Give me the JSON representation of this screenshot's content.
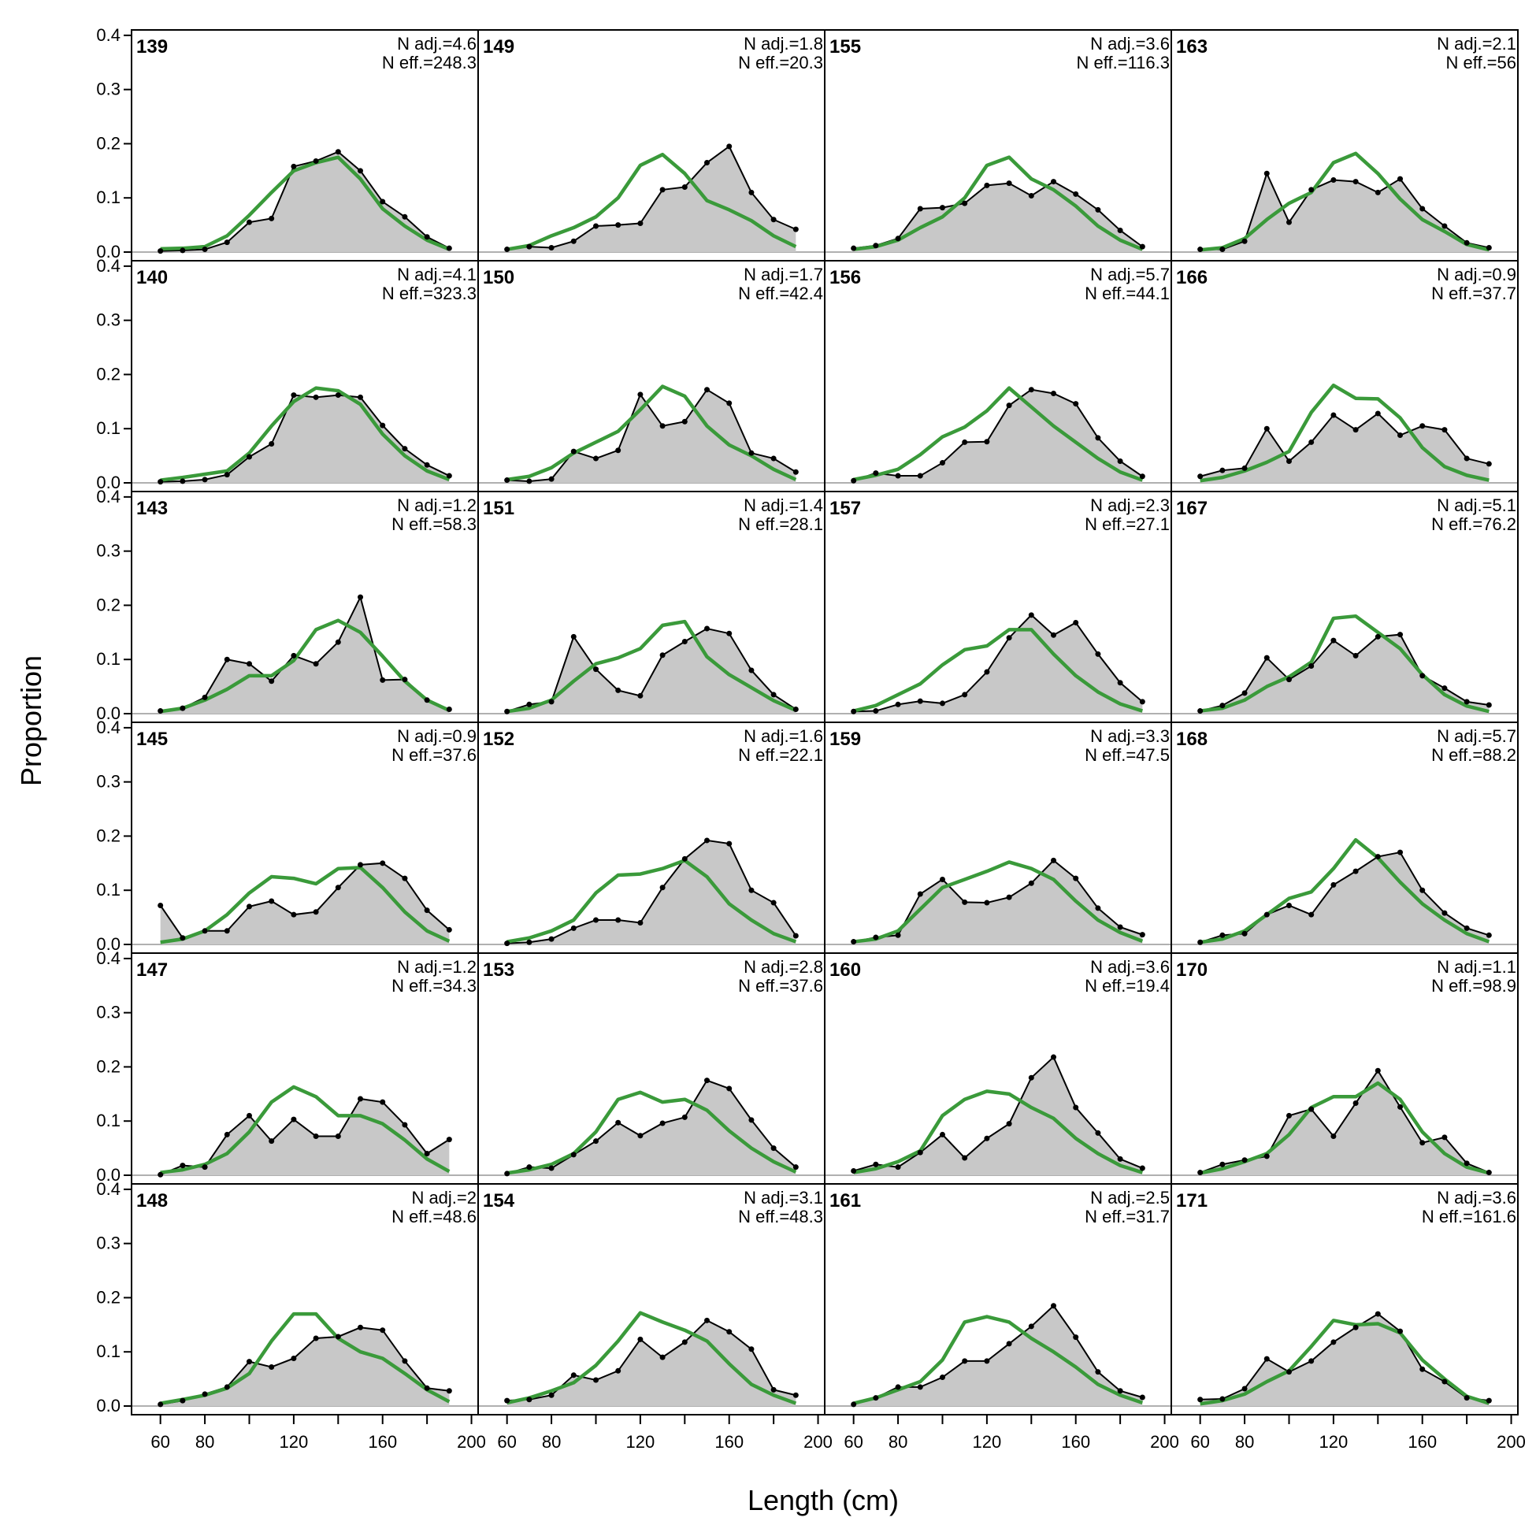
{
  "chart_data": {
    "type": "area",
    "xlabel": "Length (cm)",
    "ylabel": "Proportion",
    "xlim": [
      47,
      203
    ],
    "ylim": [
      0,
      0.41
    ],
    "x_ticks": [
      60,
      80,
      120,
      160,
      200
    ],
    "y_ticks": [
      "0.0",
      "0.1",
      "0.2",
      "0.3",
      "0.4"
    ],
    "grid": false,
    "colors": {
      "observed_fill": "#c8c8c8",
      "observed_line": "#000000",
      "expected_line": "#3a9a3a",
      "zero_line": "#b0b0b0"
    },
    "x": [
      60,
      70,
      80,
      90,
      100,
      110,
      120,
      130,
      140,
      150,
      160,
      170,
      180,
      190
    ],
    "panels": [
      {
        "title": "139",
        "n_adj": "N adj.=4.6",
        "n_eff": "N eff.=248.3",
        "observed": [
          0.002,
          0.003,
          0.005,
          0.018,
          0.055,
          0.062,
          0.158,
          0.168,
          0.185,
          0.15,
          0.093,
          0.065,
          0.028,
          0.007
        ],
        "expected": [
          0.006,
          0.007,
          0.01,
          0.03,
          0.068,
          0.11,
          0.15,
          0.165,
          0.175,
          0.135,
          0.08,
          0.048,
          0.022,
          0.005
        ]
      },
      {
        "title": "149",
        "n_adj": "N adj.=1.8",
        "n_eff": "N eff.=20.3",
        "observed": [
          0.005,
          0.01,
          0.008,
          0.02,
          0.048,
          0.05,
          0.053,
          0.115,
          0.12,
          0.165,
          0.195,
          0.11,
          0.06,
          0.042
        ],
        "expected": [
          0.005,
          0.012,
          0.03,
          0.045,
          0.065,
          0.1,
          0.16,
          0.18,
          0.145,
          0.095,
          0.078,
          0.058,
          0.03,
          0.01
        ]
      },
      {
        "title": "155",
        "n_adj": "N adj.=3.6",
        "n_eff": "N eff.=116.3",
        "observed": [
          0.007,
          0.012,
          0.025,
          0.08,
          0.082,
          0.09,
          0.123,
          0.127,
          0.104,
          0.13,
          0.107,
          0.078,
          0.04,
          0.01
        ],
        "expected": [
          0.005,
          0.01,
          0.022,
          0.045,
          0.065,
          0.1,
          0.16,
          0.175,
          0.135,
          0.115,
          0.085,
          0.048,
          0.022,
          0.005
        ]
      },
      {
        "title": "163",
        "n_adj": "N adj.=2.1",
        "n_eff": "N eff.=56",
        "observed": [
          0.005,
          0.005,
          0.02,
          0.145,
          0.055,
          0.115,
          0.133,
          0.13,
          0.11,
          0.135,
          0.08,
          0.048,
          0.017,
          0.008
        ],
        "expected": [
          0.004,
          0.008,
          0.025,
          0.06,
          0.09,
          0.11,
          0.165,
          0.182,
          0.145,
          0.098,
          0.06,
          0.038,
          0.014,
          0.004
        ]
      },
      {
        "title": "140",
        "n_adj": "N adj.=4.1",
        "n_eff": "N eff.=323.3",
        "observed": [
          0.002,
          0.003,
          0.006,
          0.015,
          0.048,
          0.072,
          0.162,
          0.158,
          0.162,
          0.158,
          0.106,
          0.063,
          0.033,
          0.013
        ],
        "expected": [
          0.005,
          0.01,
          0.016,
          0.022,
          0.055,
          0.105,
          0.15,
          0.175,
          0.17,
          0.145,
          0.09,
          0.05,
          0.022,
          0.006
        ]
      },
      {
        "title": "150",
        "n_adj": "N adj.=1.7",
        "n_eff": "N eff.=42.4",
        "observed": [
          0.005,
          0.003,
          0.007,
          0.058,
          0.045,
          0.06,
          0.163,
          0.105,
          0.113,
          0.172,
          0.147,
          0.055,
          0.045,
          0.02
        ],
        "expected": [
          0.006,
          0.012,
          0.028,
          0.055,
          0.075,
          0.095,
          0.135,
          0.178,
          0.16,
          0.105,
          0.07,
          0.05,
          0.025,
          0.006
        ]
      },
      {
        "title": "156",
        "n_adj": "N adj.=5.7",
        "n_eff": "N eff.=44.1",
        "observed": [
          0.004,
          0.018,
          0.013,
          0.013,
          0.037,
          0.075,
          0.076,
          0.143,
          0.172,
          0.165,
          0.146,
          0.083,
          0.04,
          0.012
        ],
        "expected": [
          0.006,
          0.014,
          0.025,
          0.052,
          0.085,
          0.103,
          0.133,
          0.175,
          0.14,
          0.105,
          0.075,
          0.045,
          0.02,
          0.005
        ]
      },
      {
        "title": "166",
        "n_adj": "N adj.=0.9",
        "n_eff": "N eff.=37.7",
        "observed": [
          0.012,
          0.023,
          0.027,
          0.1,
          0.04,
          0.075,
          0.125,
          0.098,
          0.128,
          0.088,
          0.105,
          0.098,
          0.045,
          0.035
        ],
        "expected": [
          0.004,
          0.01,
          0.022,
          0.038,
          0.058,
          0.13,
          0.18,
          0.156,
          0.155,
          0.12,
          0.065,
          0.03,
          0.014,
          0.005
        ]
      },
      {
        "title": "143",
        "n_adj": "N adj.=1.2",
        "n_eff": "N eff.=58.3",
        "observed": [
          0.005,
          0.01,
          0.03,
          0.1,
          0.092,
          0.06,
          0.107,
          0.092,
          0.132,
          0.215,
          0.062,
          0.063,
          0.025,
          0.008
        ],
        "expected": [
          0.004,
          0.01,
          0.025,
          0.045,
          0.07,
          0.07,
          0.098,
          0.155,
          0.172,
          0.15,
          0.106,
          0.06,
          0.025,
          0.006
        ]
      },
      {
        "title": "151",
        "n_adj": "N adj.=1.4",
        "n_eff": "N eff.=28.1",
        "observed": [
          0.004,
          0.017,
          0.022,
          0.142,
          0.082,
          0.043,
          0.033,
          0.108,
          0.133,
          0.157,
          0.148,
          0.08,
          0.035,
          0.008
        ],
        "expected": [
          0.004,
          0.01,
          0.025,
          0.06,
          0.092,
          0.103,
          0.12,
          0.163,
          0.17,
          0.105,
          0.072,
          0.048,
          0.024,
          0.006
        ]
      },
      {
        "title": "157",
        "n_adj": "N adj.=2.3",
        "n_eff": "N eff.=27.1",
        "observed": [
          0.004,
          0.005,
          0.017,
          0.023,
          0.019,
          0.035,
          0.077,
          0.14,
          0.182,
          0.145,
          0.168,
          0.11,
          0.057,
          0.022
        ],
        "expected": [
          0.005,
          0.015,
          0.035,
          0.055,
          0.09,
          0.118,
          0.125,
          0.155,
          0.155,
          0.11,
          0.07,
          0.04,
          0.018,
          0.005
        ]
      },
      {
        "title": "167",
        "n_adj": "N adj.=5.1",
        "n_eff": "N eff.=76.2",
        "observed": [
          0.005,
          0.015,
          0.038,
          0.103,
          0.063,
          0.088,
          0.135,
          0.107,
          0.142,
          0.146,
          0.07,
          0.047,
          0.022,
          0.016
        ],
        "expected": [
          0.005,
          0.01,
          0.025,
          0.05,
          0.068,
          0.095,
          0.176,
          0.18,
          0.15,
          0.12,
          0.072,
          0.035,
          0.014,
          0.004
        ]
      },
      {
        "title": "145",
        "n_adj": "N adj.=0.9",
        "n_eff": "N eff.=37.6",
        "observed": [
          0.072,
          0.012,
          0.025,
          0.025,
          0.07,
          0.08,
          0.055,
          0.06,
          0.105,
          0.147,
          0.15,
          0.122,
          0.063,
          0.027
        ],
        "expected": [
          0.004,
          0.01,
          0.025,
          0.055,
          0.095,
          0.125,
          0.122,
          0.112,
          0.14,
          0.142,
          0.105,
          0.06,
          0.025,
          0.006
        ]
      },
      {
        "title": "152",
        "n_adj": "N adj.=1.6",
        "n_eff": "N eff.=22.1",
        "observed": [
          0.002,
          0.004,
          0.01,
          0.03,
          0.045,
          0.045,
          0.04,
          0.105,
          0.158,
          0.192,
          0.186,
          0.1,
          0.077,
          0.016
        ],
        "expected": [
          0.005,
          0.012,
          0.025,
          0.045,
          0.095,
          0.128,
          0.13,
          0.14,
          0.155,
          0.125,
          0.075,
          0.045,
          0.02,
          0.005
        ]
      },
      {
        "title": "159",
        "n_adj": "N adj.=3.3",
        "n_eff": "N eff.=47.5",
        "observed": [
          0.005,
          0.013,
          0.017,
          0.093,
          0.12,
          0.078,
          0.077,
          0.087,
          0.113,
          0.155,
          0.122,
          0.067,
          0.032,
          0.018
        ],
        "expected": [
          0.005,
          0.01,
          0.025,
          0.065,
          0.105,
          0.12,
          0.135,
          0.152,
          0.14,
          0.12,
          0.08,
          0.045,
          0.022,
          0.006
        ]
      },
      {
        "title": "168",
        "n_adj": "N adj.=5.7",
        "n_eff": "N eff.=88.2",
        "observed": [
          0.004,
          0.017,
          0.02,
          0.055,
          0.072,
          0.055,
          0.11,
          0.135,
          0.162,
          0.17,
          0.1,
          0.058,
          0.03,
          0.017
        ],
        "expected": [
          0.004,
          0.01,
          0.025,
          0.055,
          0.085,
          0.097,
          0.14,
          0.193,
          0.16,
          0.115,
          0.075,
          0.045,
          0.02,
          0.005
        ]
      },
      {
        "title": "147",
        "n_adj": "N adj.=1.2",
        "n_eff": "N eff.=34.3",
        "observed": [
          0.001,
          0.018,
          0.015,
          0.075,
          0.11,
          0.063,
          0.103,
          0.072,
          0.072,
          0.141,
          0.135,
          0.093,
          0.04,
          0.066
        ],
        "expected": [
          0.005,
          0.01,
          0.02,
          0.04,
          0.08,
          0.135,
          0.163,
          0.145,
          0.11,
          0.11,
          0.095,
          0.065,
          0.03,
          0.007
        ]
      },
      {
        "title": "153",
        "n_adj": "N adj.=2.8",
        "n_eff": "N eff.=37.6",
        "observed": [
          0.003,
          0.015,
          0.013,
          0.038,
          0.063,
          0.097,
          0.073,
          0.096,
          0.107,
          0.175,
          0.16,
          0.102,
          0.05,
          0.015
        ],
        "expected": [
          0.004,
          0.01,
          0.02,
          0.04,
          0.08,
          0.14,
          0.153,
          0.135,
          0.14,
          0.12,
          0.082,
          0.05,
          0.025,
          0.006
        ]
      },
      {
        "title": "160",
        "n_adj": "N adj.=3.6",
        "n_eff": "N eff.=19.4",
        "observed": [
          0.008,
          0.02,
          0.015,
          0.042,
          0.075,
          0.032,
          0.068,
          0.095,
          0.18,
          0.218,
          0.125,
          0.078,
          0.03,
          0.013
        ],
        "expected": [
          0.005,
          0.012,
          0.025,
          0.045,
          0.11,
          0.14,
          0.155,
          0.15,
          0.125,
          0.105,
          0.068,
          0.04,
          0.018,
          0.005
        ]
      },
      {
        "title": "170",
        "n_adj": "N adj.=1.1",
        "n_eff": "N eff.=98.9",
        "observed": [
          0.005,
          0.02,
          0.028,
          0.035,
          0.11,
          0.122,
          0.072,
          0.133,
          0.193,
          0.126,
          0.06,
          0.07,
          0.022,
          0.005
        ],
        "expected": [
          0.004,
          0.012,
          0.025,
          0.04,
          0.075,
          0.125,
          0.145,
          0.145,
          0.17,
          0.14,
          0.08,
          0.04,
          0.015,
          0.004
        ]
      },
      {
        "title": "148",
        "n_adj": "N adj.=2",
        "n_eff": "N eff.=48.6",
        "observed": [
          0.003,
          0.01,
          0.022,
          0.035,
          0.082,
          0.072,
          0.088,
          0.125,
          0.128,
          0.145,
          0.14,
          0.083,
          0.033,
          0.028
        ],
        "expected": [
          0.005,
          0.012,
          0.02,
          0.033,
          0.06,
          0.12,
          0.17,
          0.17,
          0.125,
          0.1,
          0.088,
          0.06,
          0.03,
          0.008
        ]
      },
      {
        "title": "154",
        "n_adj": "N adj.=3.1",
        "n_eff": "N eff.=48.3",
        "observed": [
          0.01,
          0.012,
          0.02,
          0.057,
          0.048,
          0.065,
          0.123,
          0.09,
          0.118,
          0.158,
          0.137,
          0.105,
          0.03,
          0.02
        ],
        "expected": [
          0.006,
          0.015,
          0.028,
          0.043,
          0.075,
          0.12,
          0.172,
          0.155,
          0.14,
          0.12,
          0.078,
          0.04,
          0.02,
          0.005
        ]
      },
      {
        "title": "161",
        "n_adj": "N adj.=2.5",
        "n_eff": "N eff.=31.7",
        "observed": [
          0.003,
          0.015,
          0.035,
          0.035,
          0.053,
          0.083,
          0.083,
          0.115,
          0.147,
          0.185,
          0.127,
          0.063,
          0.028,
          0.016
        ],
        "expected": [
          0.005,
          0.015,
          0.03,
          0.045,
          0.085,
          0.155,
          0.165,
          0.155,
          0.125,
          0.1,
          0.072,
          0.04,
          0.02,
          0.006
        ]
      },
      {
        "title": "171",
        "n_adj": "N adj.=3.6",
        "n_eff": "N eff.=161.6",
        "observed": [
          0.012,
          0.013,
          0.032,
          0.087,
          0.063,
          0.083,
          0.118,
          0.145,
          0.17,
          0.138,
          0.068,
          0.045,
          0.015,
          0.01
        ],
        "expected": [
          0.004,
          0.01,
          0.022,
          0.045,
          0.065,
          0.11,
          0.158,
          0.15,
          0.152,
          0.135,
          0.085,
          0.05,
          0.018,
          0.005
        ]
      }
    ]
  }
}
